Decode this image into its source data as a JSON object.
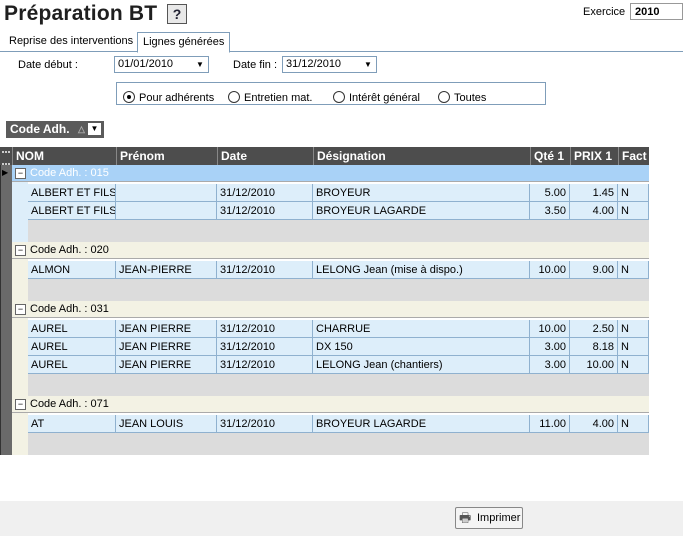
{
  "header": {
    "title": "Préparation BT",
    "help_label": "?",
    "exercice_label": "Exercice",
    "exercice_value": "2010"
  },
  "tabs": [
    {
      "label": "Reprise des interventions",
      "active": false
    },
    {
      "label": "Lignes générées",
      "active": true
    }
  ],
  "filters": {
    "date_debut_label": "Date début :",
    "date_debut_value": "01/01/2010",
    "date_fin_label": "Date fin :",
    "date_fin_value": "31/12/2010",
    "radios": [
      {
        "label": "Pour adhérents",
        "checked": true
      },
      {
        "label": "Entretien mat.",
        "checked": false
      },
      {
        "label": "Intérêt général",
        "checked": false
      },
      {
        "label": "Toutes",
        "checked": false
      }
    ]
  },
  "group_by": {
    "label": "Code Adh."
  },
  "grid": {
    "columns": [
      "NOM",
      "Prénom",
      "Date",
      "Désignation",
      "Qté 1",
      "PRIX 1",
      "Fact"
    ],
    "groups": [
      {
        "label": "Code Adh. : 015",
        "selected": true,
        "rows": [
          [
            "ALBERT ET FILS",
            "",
            "31/12/2010",
            "BROYEUR",
            "5.00",
            "1.45",
            "N"
          ],
          [
            "ALBERT ET FILS",
            "",
            "31/12/2010",
            "BROYEUR LAGARDE",
            "3.50",
            "4.00",
            "N"
          ]
        ]
      },
      {
        "label": "Code Adh. : 020",
        "selected": false,
        "rows": [
          [
            "ALMON",
            "JEAN-PIERRE",
            "31/12/2010",
            "LELONG Jean (mise à dispo.)",
            "10.00",
            "9.00",
            "N"
          ]
        ]
      },
      {
        "label": "Code Adh. : 031",
        "selected": false,
        "rows": [
          [
            "AUREL",
            "JEAN PIERRE",
            "31/12/2010",
            "CHARRUE",
            "10.00",
            "2.50",
            "N"
          ],
          [
            "AUREL",
            "JEAN PIERRE",
            "31/12/2010",
            "DX 150",
            "3.00",
            "8.18",
            "N"
          ],
          [
            "AUREL",
            "JEAN PIERRE",
            "31/12/2010",
            "LELONG Jean (chantiers)",
            "3.00",
            "10.00",
            "N"
          ]
        ]
      },
      {
        "label": "Code Adh. : 071",
        "selected": false,
        "rows": [
          [
            "AT",
            "JEAN LOUIS",
            "31/12/2010",
            "BROYEUR LAGARDE",
            "11.00",
            "4.00",
            "N"
          ]
        ]
      }
    ]
  },
  "footer": {
    "print_label": "Imprimer"
  }
}
